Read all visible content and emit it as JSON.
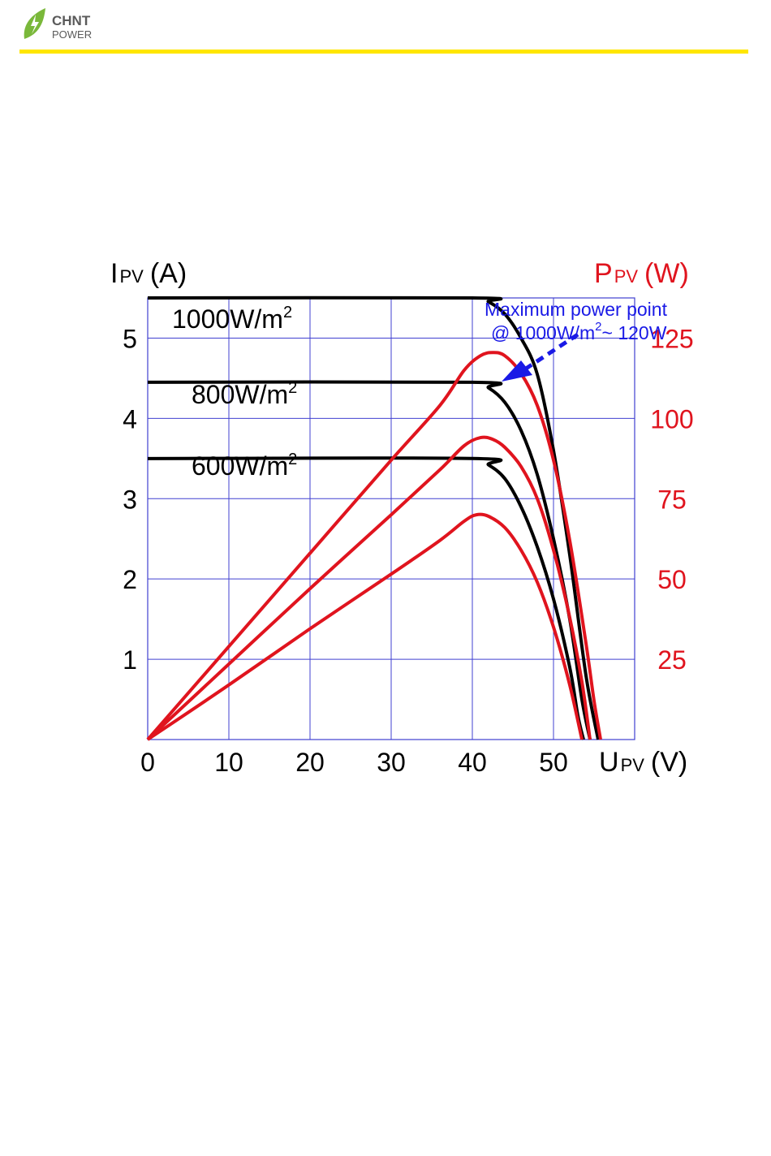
{
  "brand": {
    "name_line1": "CHNT",
    "name_line2": "POWER",
    "accent_color": "#ffe600",
    "leaf_color": "#7ab83a",
    "icon": "leaf-lightning-icon"
  },
  "chart_data": {
    "type": "line",
    "title": "",
    "left_axis": {
      "label_main": "I",
      "label_sub": "PV",
      "label_unit": "(A)",
      "ticks": [
        "1",
        "2",
        "3",
        "4",
        "5"
      ],
      "range": [
        0,
        5.5
      ]
    },
    "right_axis": {
      "label_main": "P",
      "label_sub": "PV",
      "label_unit": "(W)",
      "ticks": [
        "25",
        "50",
        "75",
        "100",
        "125"
      ],
      "range": [
        0,
        137.5
      ],
      "color": "#e0141e"
    },
    "x_axis": {
      "label_main": "U",
      "label_sub": "PV",
      "label_unit": "(V)",
      "ticks": [
        "0",
        "10",
        "20",
        "30",
        "40",
        "50"
      ],
      "range": [
        0,
        60
      ]
    },
    "grid": true,
    "series_labels": [
      {
        "text": "1000W/m",
        "sup": "2"
      },
      {
        "text": "800W/m",
        "sup": "2"
      },
      {
        "text": "600W/m",
        "sup": "2"
      }
    ],
    "current_series": [
      {
        "name": "1000W/m2",
        "color": "#000000",
        "points": [
          [
            0,
            5.5
          ],
          [
            40,
            5.5
          ],
          [
            42,
            5.45
          ],
          [
            44,
            5.3
          ],
          [
            46,
            5.0
          ],
          [
            48,
            4.55
          ],
          [
            50,
            3.6
          ],
          [
            52,
            2.3
          ],
          [
            54,
            0.8
          ],
          [
            55.5,
            0
          ]
        ]
      },
      {
        "name": "800W/m2",
        "color": "#000000",
        "points": [
          [
            0,
            4.45
          ],
          [
            40,
            4.45
          ],
          [
            42,
            4.38
          ],
          [
            44,
            4.2
          ],
          [
            46,
            3.85
          ],
          [
            48,
            3.3
          ],
          [
            50,
            2.5
          ],
          [
            52,
            1.5
          ],
          [
            53.5,
            0.5
          ],
          [
            54.5,
            0
          ]
        ]
      },
      {
        "name": "600W/m2",
        "color": "#000000",
        "points": [
          [
            0,
            3.5
          ],
          [
            40,
            3.5
          ],
          [
            42,
            3.42
          ],
          [
            44,
            3.25
          ],
          [
            46,
            2.9
          ],
          [
            48,
            2.4
          ],
          [
            50,
            1.75
          ],
          [
            52,
            0.9
          ],
          [
            53,
            0.3
          ],
          [
            53.7,
            0
          ]
        ]
      }
    ],
    "power_series": [
      {
        "name": "1000W/m2",
        "color": "#e0141e",
        "points": [
          [
            0,
            0
          ],
          [
            10,
            29
          ],
          [
            20,
            58
          ],
          [
            30,
            87
          ],
          [
            36,
            104
          ],
          [
            39,
            115
          ],
          [
            41,
            119.5
          ],
          [
            42.5,
            120.5
          ],
          [
            44,
            119.5
          ],
          [
            46,
            114
          ],
          [
            48,
            104
          ],
          [
            50,
            87
          ],
          [
            52,
            62
          ],
          [
            54,
            30
          ],
          [
            55,
            12
          ],
          [
            55.8,
            0
          ]
        ]
      },
      {
        "name": "800W/m2",
        "color": "#e0141e",
        "points": [
          [
            0,
            0
          ],
          [
            10,
            23.5
          ],
          [
            20,
            47
          ],
          [
            30,
            70
          ],
          [
            36,
            84
          ],
          [
            39,
            91.5
          ],
          [
            41,
            94
          ],
          [
            42.5,
            93.5
          ],
          [
            44,
            91
          ],
          [
            46,
            85
          ],
          [
            48,
            75
          ],
          [
            50,
            59
          ],
          [
            52,
            38
          ],
          [
            53.5,
            18
          ],
          [
            54.5,
            0
          ]
        ]
      },
      {
        "name": "600W/m2",
        "color": "#e0141e",
        "points": [
          [
            0,
            0
          ],
          [
            10,
            17
          ],
          [
            20,
            34.5
          ],
          [
            30,
            51.5
          ],
          [
            36,
            62
          ],
          [
            39,
            68
          ],
          [
            40.5,
            70
          ],
          [
            42,
            69.5
          ],
          [
            44,
            66
          ],
          [
            46,
            59
          ],
          [
            48,
            49
          ],
          [
            50,
            35
          ],
          [
            52,
            17
          ],
          [
            53.5,
            0
          ]
        ]
      }
    ],
    "annotation": {
      "line1": "Maximum power point",
      "line2_pre": "@ 1000W/m",
      "line2_sup": "2",
      "line2_post": "~ 120W",
      "color": "#1a1ae6",
      "target": [
        43,
        120.5
      ]
    }
  }
}
